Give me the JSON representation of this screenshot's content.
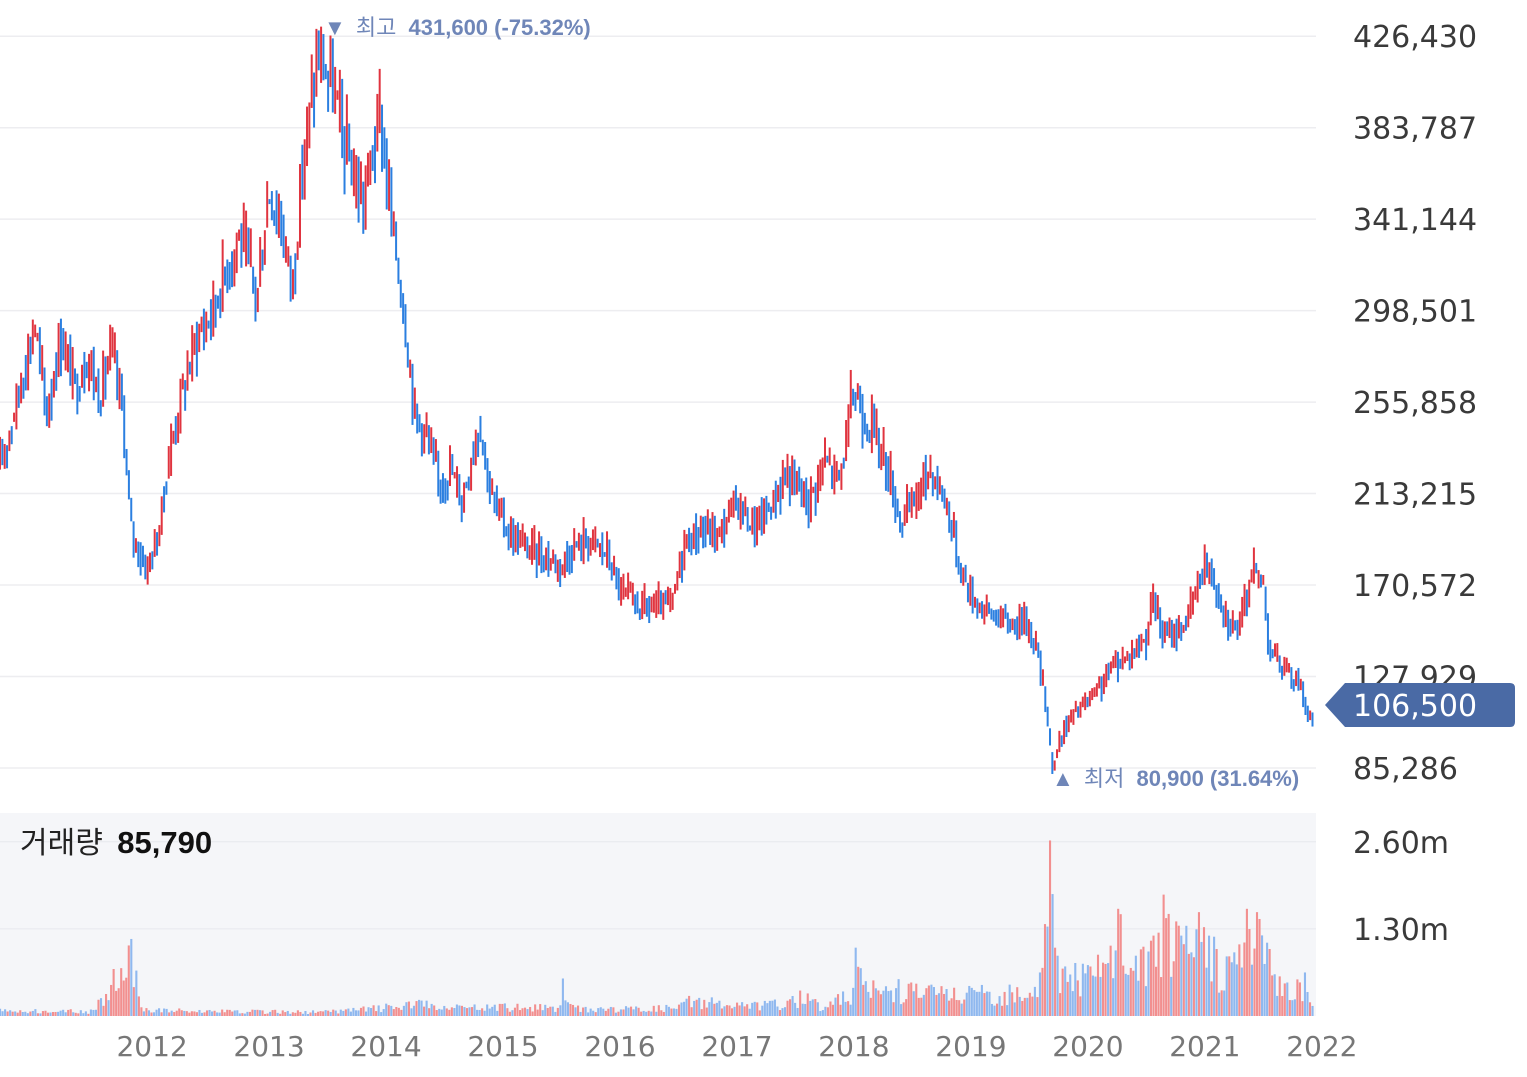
{
  "chart_data": [
    {
      "type": "candlestick",
      "title": "",
      "y_ticks": [
        "426,430",
        "383,787",
        "341,144",
        "298,501",
        "255,858",
        "213,215",
        "170,572",
        "127,929",
        "85,286"
      ],
      "y_tick_values": [
        426430,
        383787,
        341144,
        298501,
        255858,
        213215,
        170572,
        127929,
        85286
      ],
      "ylim": [
        75000,
        434000
      ],
      "x_ticks": [
        "2012",
        "2013",
        "2014",
        "2015",
        "2016",
        "2017",
        "2018",
        "2019",
        "2020",
        "2021",
        "2022"
      ],
      "x_range": [
        2011.2,
        2022.45
      ],
      "grid": true,
      "up_color": "#e0343f",
      "down_color": "#2b7fe0",
      "current_price": {
        "value": 106500,
        "label": "106,500",
        "color": "#4a6aa5"
      },
      "high": {
        "marker": "▼",
        "label": "최고",
        "value": 431600,
        "text": "431,600 (-75.32%)",
        "date": 2013.92
      },
      "low": {
        "marker": "▲",
        "label": "최저",
        "value": 80900,
        "text": "80,900 (31.64%)",
        "date": 2020.2
      },
      "price_path": [
        [
          2011.2,
          225000
        ],
        [
          2011.35,
          258000
        ],
        [
          2011.5,
          292000
        ],
        [
          2011.6,
          250000
        ],
        [
          2011.72,
          286000
        ],
        [
          2011.85,
          262000
        ],
        [
          2011.95,
          278000
        ],
        [
          2012.05,
          258000
        ],
        [
          2012.15,
          280000
        ],
        [
          2012.25,
          252000
        ],
        [
          2012.32,
          196000
        ],
        [
          2012.45,
          178000
        ],
        [
          2012.55,
          192000
        ],
        [
          2012.65,
          232000
        ],
        [
          2012.75,
          258000
        ],
        [
          2012.88,
          286000
        ],
        [
          2013.0,
          296000
        ],
        [
          2013.1,
          312000
        ],
        [
          2013.25,
          335000
        ],
        [
          2013.4,
          305000
        ],
        [
          2013.5,
          355000
        ],
        [
          2013.6,
          340000
        ],
        [
          2013.7,
          310000
        ],
        [
          2013.8,
          372000
        ],
        [
          2013.92,
          418000
        ],
        [
          2014.05,
          402000
        ],
        [
          2014.15,
          375000
        ],
        [
          2014.3,
          348000
        ],
        [
          2014.45,
          390000
        ],
        [
          2014.55,
          340000
        ],
        [
          2014.65,
          300000
        ],
        [
          2014.75,
          250000
        ],
        [
          2014.85,
          240000
        ],
        [
          2014.95,
          218000
        ],
        [
          2015.05,
          225000
        ],
        [
          2015.15,
          210000
        ],
        [
          2015.3,
          248000
        ],
        [
          2015.4,
          212000
        ],
        [
          2015.55,
          195000
        ],
        [
          2015.7,
          188000
        ],
        [
          2015.85,
          184000
        ],
        [
          2016.0,
          180000
        ],
        [
          2016.1,
          188000
        ],
        [
          2016.25,
          192000
        ],
        [
          2016.4,
          184000
        ],
        [
          2016.5,
          168000
        ],
        [
          2016.65,
          161000
        ],
        [
          2016.8,
          160000
        ],
        [
          2016.95,
          162000
        ],
        [
          2017.05,
          190000
        ],
        [
          2017.2,
          196000
        ],
        [
          2017.35,
          194000
        ],
        [
          2017.5,
          210000
        ],
        [
          2017.65,
          197000
        ],
        [
          2017.8,
          208000
        ],
        [
          2017.92,
          222000
        ],
        [
          2018.0,
          218000
        ],
        [
          2018.12,
          210000
        ],
        [
          2018.25,
          228000
        ],
        [
          2018.38,
          220000
        ],
        [
          2018.5,
          262000
        ],
        [
          2018.6,
          248000
        ],
        [
          2018.7,
          240000
        ],
        [
          2018.8,
          222000
        ],
        [
          2018.9,
          200000
        ],
        [
          2019.0,
          208000
        ],
        [
          2019.15,
          225000
        ],
        [
          2019.3,
          208000
        ],
        [
          2019.4,
          180000
        ],
        [
          2019.5,
          166000
        ],
        [
          2019.6,
          160000
        ],
        [
          2019.72,
          156000
        ],
        [
          2019.85,
          152000
        ],
        [
          2019.95,
          155000
        ],
        [
          2020.05,
          145000
        ],
        [
          2020.15,
          112000
        ],
        [
          2020.2,
          84000
        ],
        [
          2020.28,
          102000
        ],
        [
          2020.4,
          112000
        ],
        [
          2020.55,
          118000
        ],
        [
          2020.7,
          132000
        ],
        [
          2020.85,
          138000
        ],
        [
          2021.0,
          146000
        ],
        [
          2021.05,
          165000
        ],
        [
          2021.15,
          146000
        ],
        [
          2021.3,
          150000
        ],
        [
          2021.4,
          162000
        ],
        [
          2021.5,
          182000
        ],
        [
          2021.6,
          170000
        ],
        [
          2021.7,
          154000
        ],
        [
          2021.8,
          150000
        ],
        [
          2021.9,
          178000
        ],
        [
          2022.0,
          172000
        ],
        [
          2022.05,
          142000
        ],
        [
          2022.15,
          132000
        ],
        [
          2022.25,
          128000
        ],
        [
          2022.33,
          124000
        ],
        [
          2022.38,
          108000
        ],
        [
          2022.42,
          106500
        ]
      ]
    },
    {
      "type": "bar",
      "title": "거래량",
      "current_label": "85,790",
      "y_ticks": [
        "2.60m",
        "1.30m"
      ],
      "y_tick_values": [
        2600000,
        1300000
      ],
      "ylim": [
        0,
        3000000
      ],
      "up_color": "#f28f8f",
      "down_color": "#8fb8ef",
      "background": "#f5f6f9",
      "volume_path": [
        [
          2011.2,
          100000
        ],
        [
          2012.0,
          90000
        ],
        [
          2012.33,
          1150000
        ],
        [
          2012.4,
          130000
        ],
        [
          2013.0,
          90000
        ],
        [
          2014.0,
          80000
        ],
        [
          2014.8,
          230000
        ],
        [
          2015.0,
          150000
        ],
        [
          2015.5,
          180000
        ],
        [
          2016.0,
          160000
        ],
        [
          2016.02,
          560000
        ],
        [
          2016.1,
          150000
        ],
        [
          2016.6,
          140000
        ],
        [
          2017.0,
          170000
        ],
        [
          2017.1,
          300000
        ],
        [
          2017.5,
          200000
        ],
        [
          2017.95,
          250000
        ],
        [
          2018.05,
          380000
        ],
        [
          2018.2,
          200000
        ],
        [
          2018.5,
          420000
        ],
        [
          2018.52,
          1020000
        ],
        [
          2018.6,
          520000
        ],
        [
          2019.0,
          500000
        ],
        [
          2019.5,
          420000
        ],
        [
          2019.9,
          430000
        ],
        [
          2020.1,
          650000
        ],
        [
          2020.18,
          2620000
        ],
        [
          2020.25,
          900000
        ],
        [
          2020.5,
          760000
        ],
        [
          2020.7,
          1050000
        ],
        [
          2020.75,
          1600000
        ],
        [
          2020.9,
          900000
        ],
        [
          2021.05,
          1200000
        ],
        [
          2021.15,
          1750000
        ],
        [
          2021.3,
          1200000
        ],
        [
          2021.45,
          1550000
        ],
        [
          2021.6,
          1000000
        ],
        [
          2021.75,
          950000
        ],
        [
          2021.85,
          1600000
        ],
        [
          2021.95,
          1550000
        ],
        [
          2022.05,
          1000000
        ],
        [
          2022.2,
          500000
        ],
        [
          2022.35,
          650000
        ],
        [
          2022.42,
          150000
        ]
      ]
    }
  ]
}
